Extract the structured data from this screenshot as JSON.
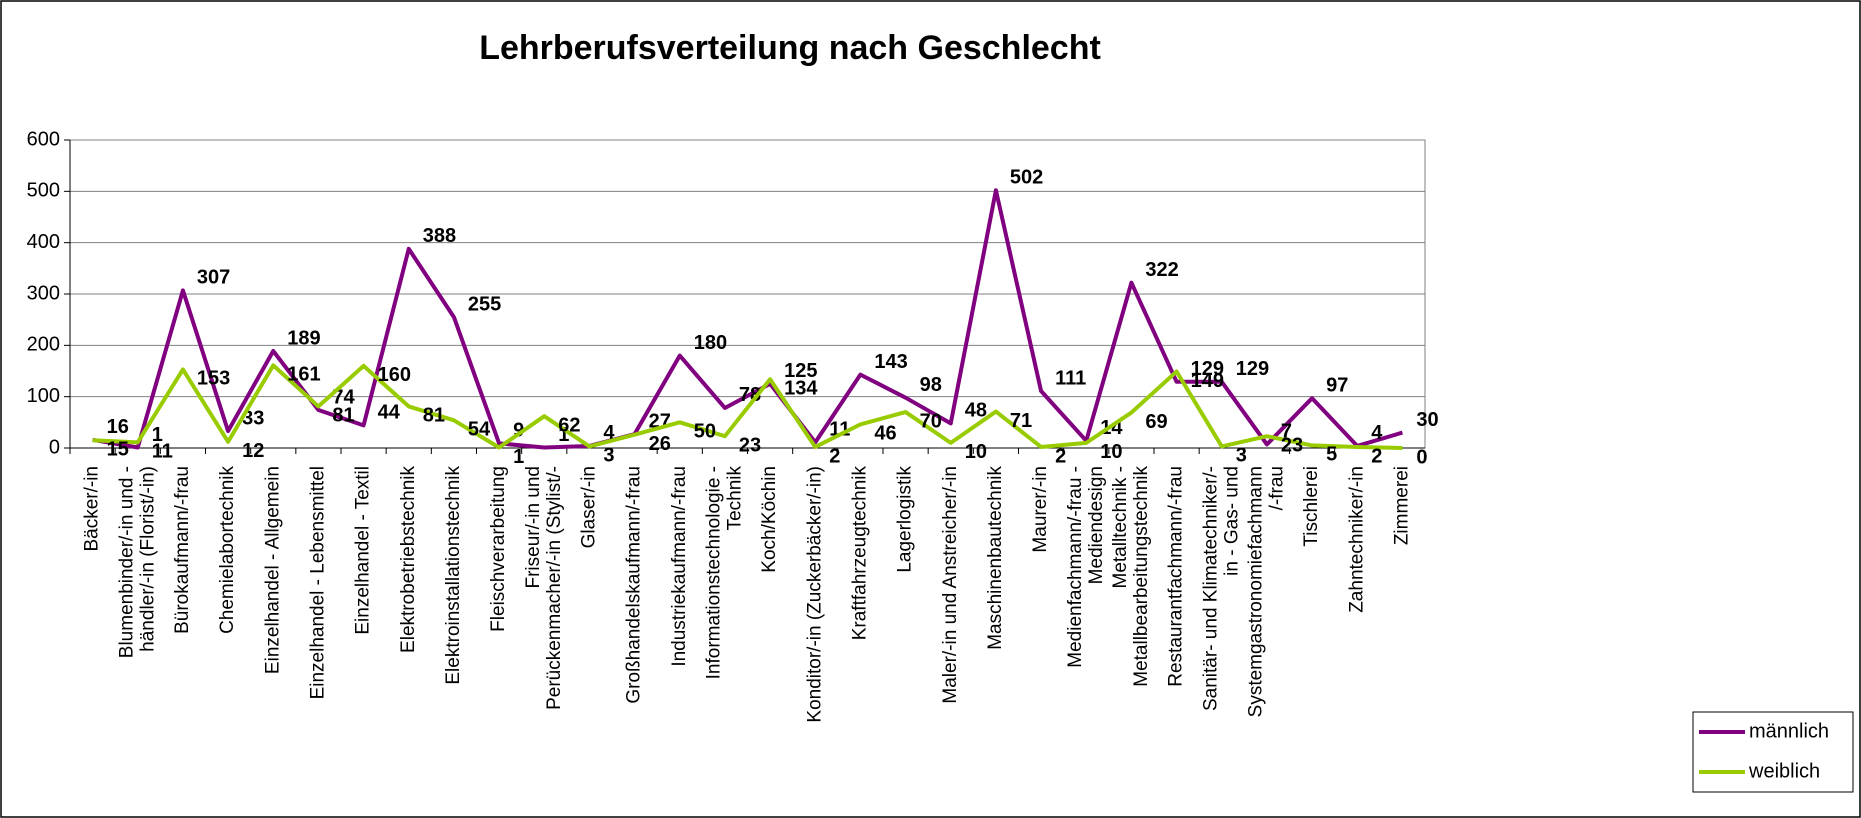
{
  "chart_data": {
    "type": "line",
    "title": "Lehrberufsverteilung nach Geschlecht",
    "categories": [
      "Bäcker/-in",
      "Blumenbinder/-in und -\nhändler/-in (Florist/-in)",
      "Bürokaufmann/-frau",
      "Chemielabortechnik",
      "Einzelhandel - Allgemein",
      "Einzelhandel - Lebensmittel",
      "Einzelhandel - Textil",
      "Elektrobetriebstechnik",
      "Elektroinstallationstechnik",
      "Fleischverarbeitung",
      "Friseur/-in und\nPerückenmacher/-in (Stylist/-",
      "Glaser/-in",
      "Großhandelskaufmann/-frau",
      "Industriekaufmann/-frau",
      "Informationstechnologie -\nTechnik",
      "Koch/Köchin",
      "Konditor/-in (Zuckerbäcker/-in)",
      "Kraftfahrzeugtechnik",
      "Lagerlogistik",
      "Maler/-in und Anstreicher/-in",
      "Maschinenbautechnik",
      "Maurer/-in",
      "Medienfachmann/-frau -\nMediendesign",
      "Metalltechnik -\nMetallbearbeitungstechnik",
      "Restaurantfachmann/-frau",
      "Sanitär- und Klimatechniker/-\nin - Gas- und",
      "Systemgastronomiefachmann\n/-frau",
      "Tischlerei",
      "Zahntechniker/-in",
      "Zimmerei"
    ],
    "series": [
      {
        "name": "männlich",
        "color": "#800080",
        "values": [
          16,
          1,
          307,
          33,
          189,
          74,
          44,
          388,
          255,
          9,
          1,
          4,
          27,
          180,
          78,
          125,
          11,
          143,
          98,
          48,
          502,
          111,
          14,
          322,
          129,
          129,
          7,
          97,
          4,
          30
        ]
      },
      {
        "name": "weiblich",
        "color": "#99cc00",
        "values": [
          15,
          11,
          153,
          12,
          161,
          81,
          160,
          81,
          54,
          1,
          62,
          3,
          26,
          50,
          23,
          134,
          2,
          46,
          70,
          10,
          71,
          2,
          10,
          69,
          149,
          3,
          23,
          5,
          2,
          0
        ]
      }
    ],
    "ylim": [
      0,
      600
    ],
    "yticks": [
      0,
      100,
      200,
      300,
      400,
      500,
      600
    ],
    "grid": true,
    "legend": "bottom-right"
  }
}
